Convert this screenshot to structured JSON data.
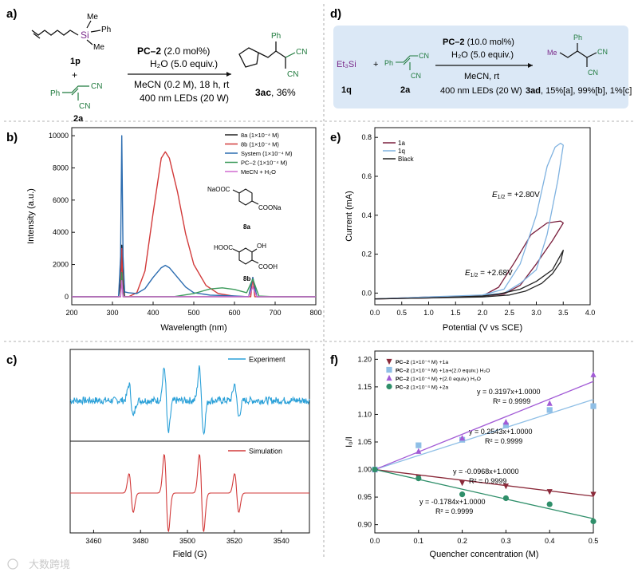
{
  "colors": {
    "dark": "#7a1f3d",
    "red": "#d23a3a",
    "blue": "#2b6cb0",
    "green": "#3a9a5a",
    "magenta": "#d06ad0",
    "lightblue": "#7fb2e0",
    "black": "#222222",
    "panel_bg": "#dbe8f6",
    "sky": "#2aa0d8",
    "chem_green": "#1f7a3d",
    "violet": "#a25bd6",
    "teal": "#2f8f6a",
    "brown": "#8b2a3a",
    "purple": "#7a2a8a"
  },
  "panel_a": {
    "letter": "a)",
    "reagent_1p": "1p",
    "reagent_2a": "2a",
    "plus": "+",
    "si_label": "Si",
    "me_top": "Me",
    "ph_top": "Ph",
    "me_right": "Me",
    "ph_2a": "Ph",
    "cn_a1": "CN",
    "cn_a2": "CN",
    "cond_catalyst": "PC–2",
    "cond_loading": " (2.0 mol%)",
    "cond_water": "H₂O (5.0 equiv.)",
    "cond_solvent": "MeCN (0.2 M), 18 h, rt",
    "cond_light": "400 nm LEDs (20 W)",
    "prod_ph": "Ph",
    "prod_cn1": "CN",
    "prod_cn2": "CN",
    "product_id": "3ac",
    "product_yield": ", 36%"
  },
  "panel_d": {
    "letter": "d)",
    "reagent_1q": "1q",
    "reagent_2a": "2a",
    "et3si": "Et₃Si",
    "plus": "+",
    "ph_2a": "Ph",
    "cn_d1": "CN",
    "cn_d2": "CN",
    "cond_catalyst": "PC–2",
    "cond_loading": " (10.0 mol%)",
    "cond_water": "H₂O (5.0 equiv.)",
    "cond_solvent": "MeCN,  rt",
    "cond_light": "400 nm LEDs (20 W)",
    "product_id": "3ad",
    "yields": ", 15%[a], 99%[b], 1%[c]",
    "prod_me": "Me",
    "prod_ph": "Ph",
    "prod_cn1": "CN",
    "prod_cn2": "CN"
  },
  "chart_data": [
    {
      "panel": "b)",
      "type": "line",
      "xlabel": "Wavelength (nm)",
      "ylabel": "Intensity (a.u.)",
      "xlim": [
        200,
        800
      ],
      "ylim": [
        -500,
        10500
      ],
      "xticks": [
        200,
        300,
        400,
        500,
        600,
        700,
        800
      ],
      "yticks": [
        0,
        2000,
        4000,
        6000,
        8000,
        10000
      ],
      "legend_location": "top-right",
      "series": [
        {
          "name": "8a (1×10⁻⁴ M)",
          "color": "#222222",
          "x": [
            200,
            300,
            315,
            320,
            323,
            326,
            330,
            340,
            400,
            600,
            635,
            645,
            655,
            700,
            800
          ],
          "y": [
            0,
            0,
            0,
            900,
            3200,
            900,
            0,
            0,
            0,
            0,
            0,
            1150,
            0,
            0,
            0
          ]
        },
        {
          "name": "8b (1×10⁻⁴ M)",
          "color": "#d23a3a",
          "x": [
            200,
            300,
            320,
            323,
            326,
            340,
            360,
            380,
            400,
            420,
            430,
            440,
            460,
            480,
            500,
            530,
            560,
            600,
            640,
            645,
            650,
            700,
            800
          ],
          "y": [
            0,
            0,
            0,
            3000,
            0,
            0,
            250,
            1600,
            5200,
            8600,
            9000,
            8600,
            6500,
            3900,
            2000,
            700,
            200,
            30,
            0,
            1200,
            0,
            0,
            0
          ]
        },
        {
          "name": "System (1×10⁻⁴ M)",
          "color": "#2b6cb0",
          "x": [
            200,
            300,
            315,
            320,
            323,
            326,
            330,
            340,
            360,
            380,
            400,
            420,
            430,
            440,
            460,
            480,
            500,
            540,
            600,
            635,
            645,
            655,
            700,
            800
          ],
          "y": [
            0,
            0,
            0,
            2500,
            10000,
            2500,
            300,
            250,
            200,
            500,
            1200,
            1800,
            1950,
            1800,
            1200,
            600,
            250,
            100,
            50,
            0,
            1200,
            0,
            0,
            0
          ]
        },
        {
          "name": "PC–2 (1×10⁻⁴ M)",
          "color": "#3a9a5a",
          "x": [
            200,
            300,
            320,
            323,
            326,
            340,
            450,
            500,
            540,
            570,
            600,
            630,
            645,
            660,
            700,
            800
          ],
          "y": [
            0,
            0,
            0,
            1500,
            0,
            0,
            0,
            200,
            480,
            550,
            450,
            250,
            1100,
            40,
            0,
            0
          ]
        },
        {
          "name": "MeCN + H₂O",
          "color": "#d06ad0",
          "x": [
            200,
            300,
            320,
            323,
            326,
            340,
            400,
            600,
            635,
            645,
            655,
            700,
            800
          ],
          "y": [
            0,
            0,
            0,
            1000,
            0,
            0,
            0,
            0,
            0,
            600,
            0,
            0,
            0
          ]
        }
      ],
      "insets": {
        "name_8a": "8a",
        "name_8b": "8b",
        "naooc": "NaOOC",
        "coona": "COONa",
        "hooc": "HOOC",
        "oh": "OH",
        "cooh": "COOH"
      }
    },
    {
      "panel": "e)",
      "type": "line",
      "xlabel": "Potential (V vs SCE)",
      "ylabel": "Current (mA)",
      "xlim": [
        0.0,
        4.0
      ],
      "ylim": [
        -0.06,
        0.85
      ],
      "xticks": [
        0.0,
        0.5,
        1.0,
        1.5,
        2.0,
        2.5,
        3.0,
        3.5,
        4.0
      ],
      "yticks": [
        0.0,
        0.2,
        0.4,
        0.6,
        0.8
      ],
      "legend_location": "top-left",
      "annotation_1": {
        "prefix": "E",
        "sub": "1/2",
        "value": " = +2.80V"
      },
      "annotation_2": {
        "prefix": "E",
        "sub": "1/2",
        "value": " = +2.68V"
      },
      "series": [
        {
          "name": "1a",
          "color": "#7a1f3d",
          "x": [
            0.0,
            1.0,
            2.0,
            2.3,
            2.6,
            2.9,
            3.2,
            3.45,
            3.5,
            3.3,
            3.0,
            2.7,
            2.4,
            2.0,
            1.0,
            0.0
          ],
          "y": [
            -0.03,
            -0.02,
            -0.015,
            0.03,
            0.16,
            0.3,
            0.36,
            0.37,
            0.36,
            0.27,
            0.15,
            0.04,
            -0.005,
            -0.015,
            -0.025,
            -0.03
          ]
        },
        {
          "name": "1q",
          "color": "#7fb2e0",
          "x": [
            0.0,
            1.0,
            2.0,
            2.4,
            2.7,
            3.0,
            3.2,
            3.35,
            3.45,
            3.5,
            3.4,
            3.2,
            3.0,
            2.7,
            2.4,
            2.0,
            1.0,
            0.0
          ],
          "y": [
            -0.03,
            -0.02,
            -0.01,
            0.02,
            0.15,
            0.4,
            0.65,
            0.75,
            0.77,
            0.76,
            0.58,
            0.3,
            0.12,
            0.05,
            0.0,
            -0.01,
            -0.02,
            -0.03
          ]
        },
        {
          "name": "Black",
          "color": "#222222",
          "x": [
            0.0,
            1.0,
            2.0,
            2.5,
            2.8,
            3.1,
            3.3,
            3.45,
            3.5,
            3.3,
            3.0,
            2.7,
            2.3,
            2.0,
            1.0,
            0.0
          ],
          "y": [
            -0.03,
            -0.025,
            -0.02,
            -0.01,
            0.01,
            0.05,
            0.1,
            0.16,
            0.22,
            0.12,
            0.06,
            0.02,
            -0.005,
            -0.015,
            -0.025,
            -0.03
          ]
        }
      ]
    },
    {
      "panel": "c)",
      "type": "line",
      "xlabel": "Field (G)",
      "xlim": [
        3450,
        3552
      ],
      "xticks": [
        3460,
        3480,
        3500,
        3520,
        3540
      ],
      "series": [
        {
          "name": "Experiment",
          "color": "#2aa0d8",
          "peaks": [
            {
              "x": 3476,
              "amp": 0.5
            },
            {
              "x": 3491,
              "amp": 1.0
            },
            {
              "x": 3506,
              "amp": 1.0
            },
            {
              "x": 3521,
              "amp": 0.5
            }
          ],
          "noise": true
        },
        {
          "name": "Simulation",
          "color": "#d23a3a",
          "peaks": [
            {
              "x": 3476,
              "amp": 0.5
            },
            {
              "x": 3491,
              "amp": 1.0
            },
            {
              "x": 3506,
              "amp": 1.0
            },
            {
              "x": 3521,
              "amp": 0.5
            }
          ],
          "noise": false
        }
      ]
    },
    {
      "panel": "f)",
      "type": "scatter",
      "xlabel": "Quencher concentration (M)",
      "ylabel": "I₀/I",
      "xlim": [
        0.0,
        0.5
      ],
      "ylim": [
        0.885,
        1.215
      ],
      "xticks": [
        0.0,
        0.1,
        0.2,
        0.3,
        0.4,
        0.5
      ],
      "yticks": [
        0.9,
        0.95,
        1.0,
        1.05,
        1.1,
        1.15,
        1.2
      ],
      "legend_location": "top-left",
      "series": [
        {
          "name": "PC–2",
          "suffix": " (1×10⁻⁴ M) +1a",
          "color": "#8b2a3a",
          "marker": "triangle-down",
          "x": [
            0.0,
            0.1,
            0.2,
            0.3,
            0.4,
            0.5
          ],
          "y": [
            1.0,
            0.986,
            0.976,
            0.97,
            0.96,
            0.955
          ],
          "fit": {
            "slope": -0.0968,
            "intercept": 1.0
          },
          "equation": "y = -0.0968x+1.0000",
          "r2": "R² = 0.9999"
        },
        {
          "name": "PC–2",
          "suffix": " (1×10⁻⁴ M) +1a+(2.0 equiv.) H₂O",
          "color": "#8fbfe6",
          "marker": "square",
          "x": [
            0.0,
            0.1,
            0.2,
            0.3,
            0.4,
            0.5
          ],
          "y": [
            1.0,
            1.044,
            1.054,
            1.08,
            1.108,
            1.115
          ],
          "fit": {
            "slope": 0.2543,
            "intercept": 1.0
          },
          "equation": "y = 0.2543x+1.0000",
          "r2": "R² = 0.9999"
        },
        {
          "name": "PC–2",
          "suffix": " (1×10⁻⁴ M) +(2.0 equiv.) H₂O",
          "color": "#a25bd6",
          "marker": "triangle-up",
          "x": [
            0.0,
            0.1,
            0.2,
            0.3,
            0.4,
            0.5
          ],
          "y": [
            1.0,
            1.033,
            1.057,
            1.086,
            1.12,
            1.172
          ],
          "fit": {
            "slope": 0.3197,
            "intercept": 1.0
          },
          "equation": "y = 0.3197x+1.0000",
          "r2": "R² = 0.9999"
        },
        {
          "name": "PC–2",
          "suffix": " (1×10⁻⁴ M) +2a",
          "color": "#2f8f6a",
          "marker": "circle",
          "x": [
            0.0,
            0.1,
            0.2,
            0.3,
            0.4,
            0.5
          ],
          "y": [
            1.0,
            0.984,
            0.955,
            0.948,
            0.937,
            0.906
          ],
          "fit": {
            "slope": -0.1784,
            "intercept": 1.0
          },
          "equation": "y = -0.1784x+1.0000",
          "r2": "R² = 0.9999"
        }
      ]
    }
  ],
  "watermark": "大数跨境"
}
